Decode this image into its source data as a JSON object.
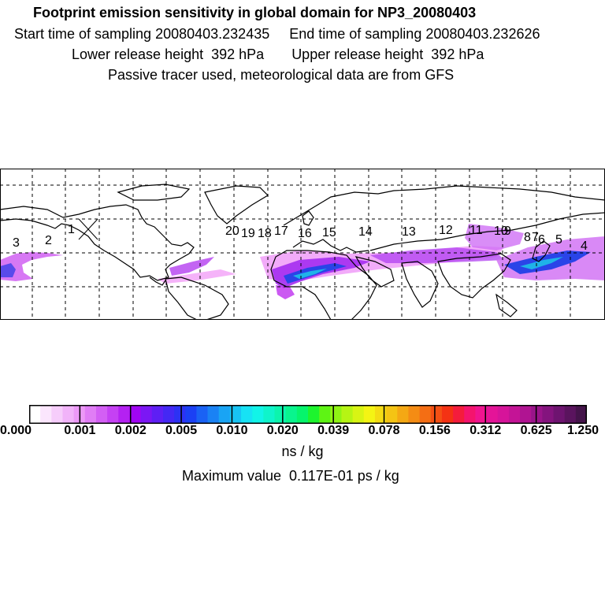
{
  "header": {
    "title": "Footprint emission sensitivity in global domain for NP3_20080403",
    "start_time": "Start time of sampling 20080403.232435",
    "end_time": "End time of sampling 20080403.232626",
    "lower_release": "Lower release height  392 hPa",
    "upper_release": "Upper release height  392 hPa",
    "note": "Passive tracer used, meteorological data are from GFS"
  },
  "map": {
    "grid_lines": "dashed",
    "trajectory_labels": [
      "1",
      "2",
      "3",
      "4",
      "5",
      "6",
      "7",
      "8",
      "9",
      "10",
      "11",
      "12",
      "13",
      "14",
      "15",
      "16",
      "17",
      "18",
      "19",
      "20"
    ],
    "plume_colors": {
      "low": "#f3a0f8",
      "mid": "#c23cf0",
      "high": "#2a44e8",
      "peak": "#1fb3e8"
    }
  },
  "colorbar": {
    "tick_labels": [
      "0.000",
      "0.001",
      "0.002",
      "0.005",
      "0.010",
      "0.020",
      "0.039",
      "0.078",
      "0.156",
      "0.312",
      "0.625",
      "1.250"
    ],
    "colors": [
      "#ffffff",
      "#fbe6fd",
      "#f6cdfb",
      "#f1b3f9",
      "#ec99f7",
      "#e07df5",
      "#d35ff4",
      "#c541f3",
      "#b421f2",
      "#a005f3",
      "#7b17f4",
      "#5e1ff4",
      "#4428f4",
      "#2c32f4",
      "#1b40f4",
      "#1a62f4",
      "#1a82f4",
      "#19a4f4",
      "#18c4f4",
      "#17e2f4",
      "#12f4e8",
      "#0ff4cb",
      "#0cf4ad",
      "#09f48e",
      "#06f46c",
      "#1df42e",
      "#5ef414",
      "#8ff414",
      "#b6f414",
      "#d8f414",
      "#f4f414",
      "#f4dc14",
      "#f4c414",
      "#f4a814",
      "#f48c14",
      "#f46e14",
      "#f45014",
      "#f43214",
      "#f41c3c",
      "#f4146e",
      "#f01490",
      "#e41498",
      "#d6149a",
      "#c41496",
      "#b01492",
      "#9a148a",
      "#84147e",
      "#6e1470",
      "#5a145e",
      "#44144a"
    ],
    "units": "ns / kg",
    "maximum": "Maximum value  0.117E-01 ps / kg"
  }
}
